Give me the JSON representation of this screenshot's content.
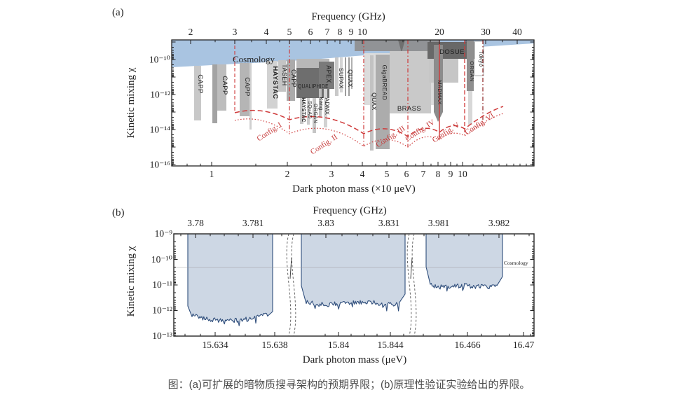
{
  "figure": {
    "panel_a_tag": "(a)",
    "panel_b_tag": "(b)",
    "caption": "图：(a)可扩展的暗物质搜寻架构的预期界限；(b)原理性验证实验给出的界限。"
  },
  "colors": {
    "cosmology_band": "#a9c4e1",
    "exclusion_fill": "#cdd7e4",
    "exclusion_stroke": "#2e4d7b",
    "config_red": "#cf3a3a",
    "config_dark_red": "#8b2121",
    "axis": "#222222"
  },
  "chart_data": [
    {
      "panel": "a",
      "type": "area",
      "top_axis_label": "Frequency (GHz)",
      "bottom_axis_label": "Dark photon mass (×10 μeV)",
      "ylabel": "Kinetic mixing χ",
      "freq_ticks": [
        "2",
        "3",
        "4",
        "5",
        "6",
        "7",
        "8",
        "9",
        "10",
        "20",
        "30",
        "40"
      ],
      "mass_ticks": [
        "1",
        "2",
        "3",
        "4",
        "5",
        "6",
        "7",
        "8",
        "9",
        "10"
      ],
      "chi_ticks": [
        "10⁻¹⁰",
        "10⁻¹²",
        "10⁻¹⁴",
        "10⁻¹⁶"
      ],
      "xlim_mass_x10uev": [
        0.7,
        19
      ],
      "ylim": [
        1e-16,
        2e-09
      ],
      "grid": false,
      "cosmology": {
        "label": "Cosmology",
        "chi_lower_edge_range": [
          3.6e-11,
          7.6e-10
        ]
      },
      "experiments": [
        {
          "name": "CAPP",
          "mass_x10uev": 0.88,
          "chi_min": 3e-14
        },
        {
          "name": "CAPP",
          "mass_x10uev": 1.08,
          "chi_min": 1.2e-13
        },
        {
          "name": "CAPP",
          "mass_x10uev": 1.36,
          "chi_min": 6e-14
        },
        {
          "name": "HAYSTAC",
          "mass_x10uev": 1.75,
          "chi_min": 1.6e-13
        },
        {
          "name": "TASEH",
          "mass_x10uev": 1.9,
          "chi_min": 1.6e-12
        },
        {
          "name": "CAPP",
          "mass_x10uev": 2.07,
          "chi_min": 4e-13
        },
        {
          "name": "QUALIPHIDE",
          "mass_x10uev": 2.5,
          "chi_min": 6e-13
        },
        {
          "name": "HAYSTAC",
          "mass_x10uev": 2.3,
          "chi_min": 2e-14
        },
        {
          "name": "SQuAD",
          "mass_x10uev": 2.43,
          "chi_min": 2e-14
        },
        {
          "name": "ORGAN",
          "mass_x10uev": 2.58,
          "chi_min": 6e-15
        },
        {
          "name": "Kang",
          "mass_x10uev": 2.71,
          "chi_min": 5e-14
        },
        {
          "name": "ADMX",
          "mass_x10uev": 2.85,
          "chi_min": 1.3e-14
        },
        {
          "name": "APEX",
          "mass_x10uev": 2.9,
          "chi_min": 2e-12
        },
        {
          "name": "SUPAX",
          "mass_x10uev": 3.2,
          "chi_min": 8e-13
        },
        {
          "name": "QUAX",
          "mass_x10uev": 3.5,
          "chi_min": 8e-13
        },
        {
          "name": "QUAX",
          "mass_x10uev": 4.3,
          "chi_min": 6e-16
        },
        {
          "name": "GigaBREAD",
          "mass_x10uev": 4.8,
          "chi_min": 8e-16
        },
        {
          "name": "BRASS",
          "mass_x10uev": 6.2,
          "chi_min": 8e-14
        },
        {
          "name": "MADMAX",
          "mass_x10uev": 8.0,
          "chi_min": 3e-14
        },
        {
          "name": "DOSUE",
          "mass_x10uev": 9.1,
          "chi_min": 1e-10
        },
        {
          "name": "ORGAN",
          "mass_x10uev": 10.7,
          "chi_min": 1.6e-12
        },
        {
          "name": "Tokyo",
          "mass_x10uev": 11.5,
          "chi_min": 1.3e-11
        }
      ],
      "configs": [
        {
          "name": "Config. I",
          "freq_range_ghz": [
            3,
            5
          ],
          "chi_dip": 6e-15
        },
        {
          "name": "Config. II",
          "freq_range_ghz": [
            5,
            10
          ],
          "chi_dip": 1e-15
        },
        {
          "name": "Config. III",
          "freq_range_ghz": [
            10,
            15
          ],
          "chi_dip": 1e-15
        },
        {
          "name": "Config. IV",
          "freq_range_ghz": [
            15,
            20
          ],
          "chi_dip": 2.5e-15
        },
        {
          "name": "Config. V",
          "freq_range_ghz": [
            20,
            25
          ],
          "chi_dip": 4e-15
        },
        {
          "name": "Config. VI",
          "freq_range_ghz": [
            25,
            30
          ],
          "chi_dip": 2e-14
        }
      ]
    },
    {
      "panel": "b",
      "type": "area",
      "top_axis_label": "Frequency (GHz)",
      "bottom_axis_label": "Dark photon mass (μeV)",
      "ylabel": "Kinetic mixing χ",
      "freq_ticks": [
        "3.78",
        "3.781",
        "3.83",
        "3.831",
        "3.981",
        "3.982"
      ],
      "mass_ticks": [
        "15.634",
        "15.638",
        "15.84",
        "15.844",
        "16.466",
        "16.47"
      ],
      "chi_ticks": [
        "10⁻⁹",
        "10⁻¹⁰",
        "10⁻¹¹",
        "10⁻¹²",
        "10⁻¹³"
      ],
      "ylim": [
        1e-13,
        1e-09
      ],
      "grid": false,
      "axis_breaks": 2,
      "cosmology": {
        "label": "Cosmology",
        "chi": 5e-11
      },
      "regions": [
        {
          "mass_range_uev": [
            15.6322,
            15.6378
          ],
          "freq_range_ghz": [
            3.7799,
            3.7813
          ],
          "chi_floor": 1.2e-12,
          "chi_min": 3e-13
        },
        {
          "mass_range_uev": [
            15.8371,
            15.8451
          ],
          "freq_range_ghz": [
            3.8296,
            3.8313
          ],
          "chi_floor": 1.8e-12,
          "chi_min": 8e-13
        },
        {
          "mass_range_uev": [
            16.4631,
            16.4685
          ],
          "freq_range_ghz": [
            3.9808,
            3.9821
          ],
          "chi_floor": 4e-12,
          "chi_min": 1.5e-12
        }
      ]
    }
  ]
}
